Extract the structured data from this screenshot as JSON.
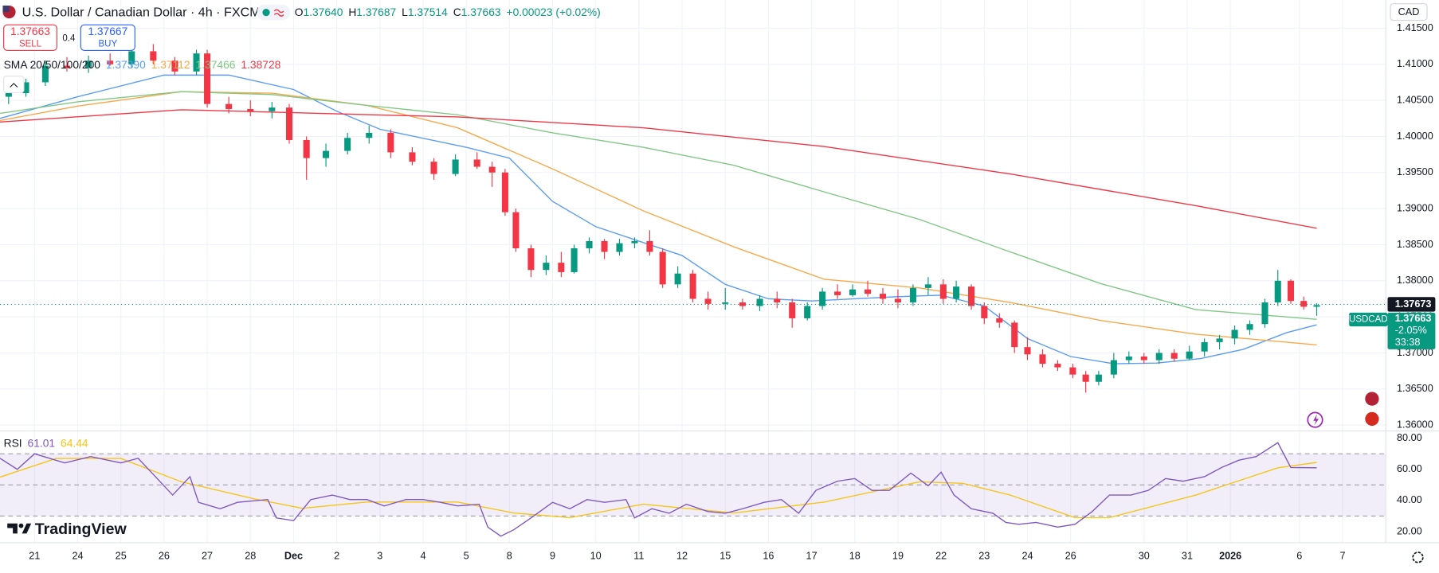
{
  "chart_data": {
    "type": "candlestick",
    "title": "U.S. Dollar / Canadian Dollar · 4h · FXCM",
    "ohlc_legend": {
      "labels": [
        "O",
        "H",
        "L",
        "C"
      ],
      "values": [
        "1.37640",
        "1.37687",
        "1.37514",
        "1.37663"
      ],
      "change": "+0.00023 (+0.02%)"
    },
    "trade": {
      "sell_price": "1.37663",
      "sell": "SELL",
      "spread": "0.4",
      "buy_price": "1.37667",
      "buy": "BUY"
    },
    "currency": "CAD",
    "symbol": "USDCAD",
    "brand": "TradingView",
    "up_color": "#089981",
    "down_color": "#f23645",
    "grid": true,
    "xlim": [
      -0.8,
      31.3
    ],
    "xticks": [
      {
        "value": 0,
        "label": "21"
      },
      {
        "value": 1,
        "label": "24"
      },
      {
        "value": 2,
        "label": "25"
      },
      {
        "value": 3,
        "label": "26"
      },
      {
        "value": 4,
        "label": "27"
      },
      {
        "value": 5,
        "label": "28"
      },
      {
        "value": 6,
        "label": "Dec"
      },
      {
        "value": 7,
        "label": "2"
      },
      {
        "value": 8,
        "label": "3"
      },
      {
        "value": 9,
        "label": "4"
      },
      {
        "value": 10,
        "label": "5"
      },
      {
        "value": 11,
        "label": "8"
      },
      {
        "value": 12,
        "label": "9"
      },
      {
        "value": 13,
        "label": "10"
      },
      {
        "value": 14,
        "label": "11"
      },
      {
        "value": 15,
        "label": "12"
      },
      {
        "value": 16,
        "label": "15"
      },
      {
        "value": 17,
        "label": "16"
      },
      {
        "value": 18,
        "label": "17"
      },
      {
        "value": 19,
        "label": "18"
      },
      {
        "value": 20,
        "label": "19"
      },
      {
        "value": 21,
        "label": "22"
      },
      {
        "value": 22,
        "label": "23"
      },
      {
        "value": 23,
        "label": "24"
      },
      {
        "value": 24,
        "label": "26"
      },
      {
        "value": 25.7,
        "label": "30"
      },
      {
        "value": 26.7,
        "label": "31"
      },
      {
        "value": 27.7,
        "label": "2026"
      },
      {
        "value": 29.3,
        "label": "6"
      },
      {
        "value": 30.3,
        "label": "7"
      }
    ],
    "ylim": [
      1.3592,
      1.4189
    ],
    "yticks": [
      {
        "value": 1.415,
        "label": "1.41500"
      },
      {
        "value": 1.41,
        "label": "1.41000"
      },
      {
        "value": 1.405,
        "label": "1.40500"
      },
      {
        "value": 1.4,
        "label": "1.40000"
      },
      {
        "value": 1.395,
        "label": "1.39500"
      },
      {
        "value": 1.39,
        "label": "1.39000"
      },
      {
        "value": 1.385,
        "label": "1.38500"
      },
      {
        "value": 1.38,
        "label": "1.38000"
      },
      {
        "value": 1.375,
        "label": "1.37500"
      },
      {
        "value": 1.37,
        "label": "1.37000"
      },
      {
        "value": 1.365,
        "label": "1.36500"
      },
      {
        "value": 1.36,
        "label": "1.36000"
      }
    ],
    "x": [
      -0.6,
      -0.2,
      0.25,
      0.75,
      1.25,
      1.75,
      2.25,
      2.75,
      3.25,
      3.75,
      4.0,
      4.5,
      5.0,
      5.5,
      5.9,
      6.3,
      6.75,
      7.25,
      7.75,
      8.25,
      8.75,
      9.25,
      9.75,
      10.25,
      10.6,
      10.9,
      11.15,
      11.5,
      11.85,
      12.2,
      12.5,
      12.85,
      13.2,
      13.55,
      13.9,
      14.25,
      14.55,
      14.9,
      15.25,
      15.6,
      16.0,
      16.4,
      16.8,
      17.2,
      17.55,
      17.9,
      18.25,
      18.6,
      18.95,
      19.3,
      19.65,
      20.0,
      20.35,
      20.7,
      21.05,
      21.35,
      21.7,
      22.0,
      22.35,
      22.7,
      23.0,
      23.35,
      23.7,
      24.05,
      24.35,
      24.65,
      25.0,
      25.35,
      25.7,
      26.05,
      26.4,
      26.75,
      27.1,
      27.45,
      27.8,
      28.15,
      28.5,
      28.8,
      29.1,
      29.4,
      29.7
    ],
    "open": [
      1.4055,
      1.406,
      1.4075,
      1.4098,
      1.4095,
      1.4105,
      1.41,
      1.4118,
      1.4105,
      1.409,
      1.4115,
      1.4045,
      1.4038,
      1.4035,
      1.404,
      1.3995,
      1.397,
      1.398,
      1.3998,
      1.4005,
      1.3978,
      1.3965,
      1.3948,
      1.3968,
      1.3958,
      1.395,
      1.3895,
      1.3845,
      1.3815,
      1.3825,
      1.3812,
      1.3845,
      1.3855,
      1.384,
      1.3852,
      1.3855,
      1.384,
      1.3795,
      1.381,
      1.3775,
      1.3768,
      1.377,
      1.3765,
      1.3775,
      1.377,
      1.3748,
      1.3765,
      1.3785,
      1.378,
      1.3788,
      1.3782,
      1.3775,
      1.377,
      1.379,
      1.3795,
      1.3775,
      1.3792,
      1.3765,
      1.3748,
      1.3742,
      1.3708,
      1.3698,
      1.3685,
      1.368,
      1.367,
      1.366,
      1.367,
      1.369,
      1.3695,
      1.369,
      1.37,
      1.3692,
      1.3702,
      1.3715,
      1.372,
      1.3732,
      1.374,
      1.377,
      1.38,
      1.3772,
      1.3764
    ],
    "high": [
      1.4065,
      1.408,
      1.4105,
      1.411,
      1.4112,
      1.4115,
      1.4125,
      1.4128,
      1.411,
      1.412,
      1.412,
      1.4055,
      1.405,
      1.4048,
      1.4045,
      1.4,
      1.399,
      1.4005,
      1.4015,
      1.401,
      1.3985,
      1.397,
      1.3975,
      1.3978,
      1.3965,
      1.3955,
      1.39,
      1.385,
      1.3835,
      1.384,
      1.385,
      1.386,
      1.3858,
      1.3858,
      1.386,
      1.387,
      1.3845,
      1.382,
      1.3815,
      1.3785,
      1.379,
      1.3775,
      1.378,
      1.3785,
      1.3775,
      1.377,
      1.379,
      1.3795,
      1.3795,
      1.38,
      1.379,
      1.3788,
      1.3795,
      1.3805,
      1.3802,
      1.38,
      1.3795,
      1.377,
      1.3755,
      1.3745,
      1.3722,
      1.3705,
      1.369,
      1.3685,
      1.3675,
      1.3675,
      1.37,
      1.3702,
      1.37,
      1.3705,
      1.3705,
      1.371,
      1.372,
      1.3725,
      1.3738,
      1.3745,
      1.3775,
      1.3815,
      1.3802,
      1.3778,
      1.37687
    ],
    "low": [
      1.4045,
      1.4055,
      1.407,
      1.409,
      1.4088,
      1.4098,
      1.4095,
      1.41,
      1.4085,
      1.4085,
      1.404,
      1.4032,
      1.4028,
      1.4025,
      1.399,
      1.394,
      1.3958,
      1.3975,
      1.399,
      1.397,
      1.396,
      1.394,
      1.3945,
      1.3955,
      1.393,
      1.389,
      1.384,
      1.3805,
      1.3808,
      1.3805,
      1.381,
      1.3838,
      1.383,
      1.3835,
      1.3845,
      1.3835,
      1.379,
      1.379,
      1.377,
      1.376,
      1.376,
      1.376,
      1.3758,
      1.3762,
      1.3735,
      1.3745,
      1.376,
      1.3775,
      1.3778,
      1.3778,
      1.3768,
      1.3762,
      1.3765,
      1.378,
      1.3768,
      1.377,
      1.376,
      1.374,
      1.3735,
      1.37,
      1.369,
      1.368,
      1.3675,
      1.3665,
      1.3645,
      1.3655,
      1.3665,
      1.3685,
      1.3685,
      1.3685,
      1.3688,
      1.369,
      1.3695,
      1.3705,
      1.3712,
      1.3725,
      1.3735,
      1.3765,
      1.3768,
      1.376,
      1.37514
    ],
    "close": [
      1.406,
      1.4075,
      1.4098,
      1.4095,
      1.4105,
      1.41,
      1.4118,
      1.4105,
      1.409,
      1.4115,
      1.4045,
      1.4038,
      1.4035,
      1.404,
      1.3995,
      1.397,
      1.398,
      1.3998,
      1.4005,
      1.3978,
      1.3965,
      1.3948,
      1.3968,
      1.3958,
      1.395,
      1.3895,
      1.3845,
      1.3815,
      1.3825,
      1.3812,
      1.3845,
      1.3855,
      1.384,
      1.3852,
      1.3855,
      1.384,
      1.3795,
      1.381,
      1.3775,
      1.3768,
      1.377,
      1.3765,
      1.3775,
      1.377,
      1.3748,
      1.3765,
      1.3785,
      1.378,
      1.3788,
      1.3782,
      1.3775,
      1.377,
      1.379,
      1.3795,
      1.3775,
      1.3792,
      1.3765,
      1.3748,
      1.3742,
      1.3708,
      1.3698,
      1.3685,
      1.368,
      1.367,
      1.366,
      1.367,
      1.369,
      1.3695,
      1.369,
      1.37,
      1.3692,
      1.3702,
      1.3715,
      1.372,
      1.3732,
      1.374,
      1.377,
      1.38,
      1.3772,
      1.3764,
      1.37663
    ],
    "sma": {
      "label": "SMA 20/50/100/200",
      "series": [
        {
          "color": "#5b9cf6",
          "last_label": "1.37390",
          "x": [
            -0.8,
            1,
            3,
            4.5,
            6,
            7,
            8,
            10,
            11,
            12,
            13,
            14,
            15,
            16,
            17,
            18,
            19,
            20,
            21,
            22,
            23,
            24,
            25,
            26,
            27,
            28,
            29,
            29.7
          ],
          "values": [
            1.4025,
            1.4055,
            1.4085,
            1.4085,
            1.4065,
            1.4035,
            1.401,
            1.3985,
            1.397,
            1.391,
            1.3875,
            1.3855,
            1.3835,
            1.3795,
            1.3775,
            1.3772,
            1.3775,
            1.3778,
            1.378,
            1.3765,
            1.372,
            1.3695,
            1.3685,
            1.3686,
            1.3692,
            1.3705,
            1.3728,
            1.3739
          ]
        },
        {
          "color": "#f7a84a",
          "last_label": "1.37112",
          "x": [
            -0.8,
            1,
            3.4,
            5.5,
            7.7,
            9.8,
            12,
            14.1,
            16.2,
            18.3,
            20.5,
            22.6,
            24.7,
            26.9,
            29.7
          ],
          "values": [
            1.4022,
            1.4042,
            1.4062,
            1.406,
            1.4043,
            1.4012,
            1.3955,
            1.3897,
            1.3847,
            1.3802,
            1.379,
            1.377,
            1.3745,
            1.3726,
            1.37112
          ]
        },
        {
          "color": "#81c784",
          "last_label": "1.37466",
          "x": [
            -0.8,
            1,
            3.4,
            5.5,
            7.7,
            9.8,
            12,
            14.1,
            16.2,
            18.3,
            20.5,
            22.6,
            24.7,
            26.9,
            29.7
          ],
          "values": [
            1.4032,
            1.4048,
            1.4062,
            1.4058,
            1.4043,
            1.403,
            1.4005,
            1.3985,
            1.396,
            1.3923,
            1.3885,
            1.384,
            1.3796,
            1.376,
            1.37466
          ]
        },
        {
          "color": "#f23645",
          "last_label": "1.38728",
          "x": [
            -0.8,
            3.4,
            9.8,
            14.1,
            18.3,
            22.6,
            26.9,
            29.7
          ],
          "values": [
            1.402,
            1.4037,
            1.4027,
            1.4012,
            1.3986,
            1.3948,
            1.3904,
            1.38728
          ]
        }
      ]
    },
    "price_line": {
      "value": 1.37673,
      "label": "1.37673"
    },
    "last_price": {
      "label": "1.37663",
      "change": "-2.05%",
      "countdown": "33:38"
    },
    "rsi": {
      "label": "RSI",
      "value_label": "61.01",
      "ma_label": "64.44",
      "color": "#7e57c2",
      "ma_color": "#f5c518",
      "ylim": [
        12.9,
        84.7
      ],
      "yticks": [
        {
          "value": 80,
          "label": "80.00"
        },
        {
          "value": 60,
          "label": "60.00"
        },
        {
          "value": 40,
          "label": "40.00"
        },
        {
          "value": 20,
          "label": "20.00"
        }
      ],
      "bands": [
        70,
        50,
        30
      ],
      "x": [
        -0.8,
        -0.4,
        0,
        0.7,
        1.3,
        2.0,
        2.4,
        2.8,
        3.2,
        3.6,
        3.8,
        4.3,
        4.7,
        5.4,
        5.6,
        6.0,
        6.4,
        6.9,
        7.3,
        7.7,
        8.1,
        8.6,
        9.0,
        9.4,
        9.8,
        10.3,
        10.5,
        10.8,
        11.1,
        11.5,
        12.0,
        12.4,
        12.8,
        13.2,
        13.7,
        13.9,
        14.3,
        14.7,
        15.1,
        15.6,
        16.0,
        16.4,
        16.9,
        17.3,
        17.7,
        18.1,
        18.6,
        19.0,
        19.4,
        19.8,
        20.3,
        20.7,
        21.0,
        21.3,
        21.7,
        22.2,
        22.5,
        22.8,
        23.2,
        23.7,
        24.1,
        24.5,
        24.9,
        25.4,
        25.8,
        26.2,
        26.6,
        27.1,
        27.5,
        27.9,
        28.3,
        28.8,
        29.1,
        29.7
      ],
      "values": [
        67.1,
        60,
        70,
        64.1,
        68.2,
        64.1,
        67.1,
        55.3,
        43.5,
        55.3,
        38.8,
        34.7,
        38.8,
        40.6,
        28.8,
        27.1,
        40.6,
        43.5,
        40.6,
        40.6,
        36.5,
        40.6,
        40.6,
        38.8,
        36.5,
        37.6,
        22.9,
        17.1,
        21.2,
        28.8,
        38.8,
        34.7,
        40.6,
        38.8,
        40.6,
        28.8,
        34.7,
        31.8,
        37.6,
        32.9,
        31.8,
        34.7,
        38.8,
        40.6,
        31.8,
        46.5,
        52.4,
        54.1,
        46.5,
        46.5,
        57.6,
        49.4,
        58.2,
        43.5,
        34.7,
        31.8,
        25.9,
        24.7,
        25.9,
        22.9,
        24.7,
        32.9,
        43.5,
        43.5,
        46.5,
        54.1,
        52.4,
        55.3,
        61.2,
        65.9,
        68.2,
        77.1,
        61.2,
        61.01
      ],
      "ma_x": [
        -0.8,
        0.5,
        2.0,
        3.4,
        5.1,
        6.2,
        7.7,
        9.8,
        11.1,
        12.4,
        14.1,
        16.2,
        18.3,
        20.5,
        21.5,
        22.6,
        24.1,
        24.9,
        26.9,
        28.8,
        29.7
      ],
      "ma_values": [
        55,
        67,
        67,
        52,
        41,
        35,
        39,
        39,
        32,
        29,
        37.6,
        32,
        39,
        52,
        51,
        43.5,
        29,
        29,
        43.5,
        61,
        64.44
      ]
    }
  }
}
